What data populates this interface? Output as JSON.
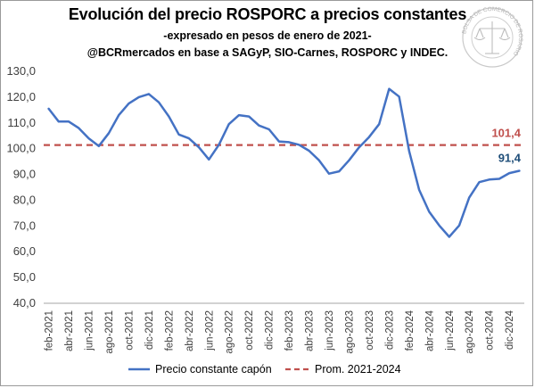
{
  "chart_data": {
    "type": "line",
    "title": "Evolución del precio ROSPORC a precios constantes",
    "subtitle": "-expresado en pesos de enero de 2021-",
    "source": "@BCRmercados en base a SAGyP, SIO-Carnes, ROSPORC y INDEC.",
    "xlabel": "",
    "ylabel": "",
    "ylim": [
      40,
      130
    ],
    "yticks": [
      "40,0",
      "50,0",
      "60,0",
      "70,0",
      "80,0",
      "90,0",
      "100,0",
      "110,0",
      "120,0",
      "130,0"
    ],
    "x": [
      "feb-2021",
      "mar-2021",
      "abr-2021",
      "may-2021",
      "jun-2021",
      "jul-2021",
      "ago-2021",
      "sep-2021",
      "oct-2021",
      "nov-2021",
      "dic-2021",
      "ene-2022",
      "feb-2022",
      "mar-2022",
      "abr-2022",
      "may-2022",
      "jun-2022",
      "jul-2022",
      "ago-2022",
      "sep-2022",
      "oct-2022",
      "nov-2022",
      "dic-2022",
      "ene-2023",
      "feb-2023",
      "mar-2023",
      "abr-2023",
      "may-2023",
      "jun-2023",
      "jul-2023",
      "ago-2023",
      "sep-2023",
      "oct-2023",
      "nov-2023",
      "dic-2023",
      "ene-2024",
      "feb-2024",
      "mar-2024",
      "abr-2024",
      "may-2024",
      "jun-2024",
      "jul-2024",
      "ago-2024",
      "sep-2024",
      "oct-2024",
      "nov-2024",
      "dic-2024",
      "ene-2025"
    ],
    "xtick_labels": [
      "feb-2021",
      "abr-2021",
      "jun-2021",
      "ago-2021",
      "oct-2021",
      "dic-2021",
      "feb-2022",
      "abr-2022",
      "jun-2022",
      "ago-2022",
      "oct-2022",
      "dic-2022",
      "feb-2023",
      "abr-2023",
      "jun-2023",
      "ago-2023",
      "oct-2023",
      "dic-2023",
      "feb-2024",
      "abr-2024",
      "jun-2024",
      "ago-2024",
      "oct-2024",
      "dic-2024"
    ],
    "series": [
      {
        "name": "Precio constante capón",
        "color": "#4472c4",
        "style": "solid",
        "values": [
          115.5,
          110.5,
          110.5,
          108.0,
          104.0,
          101.0,
          106.0,
          113.0,
          117.5,
          120.0,
          121.2,
          118.0,
          112.5,
          105.5,
          104.0,
          100.5,
          95.8,
          101.5,
          109.5,
          113.0,
          112.5,
          109.0,
          107.5,
          102.8,
          102.5,
          101.5,
          99.2,
          95.5,
          90.3,
          91.2,
          95.5,
          100.5,
          104.5,
          109.5,
          123.2,
          120.2,
          99.0,
          84.0,
          75.5,
          70.2,
          65.8,
          70.2,
          81.0,
          87.0,
          88.0,
          88.3,
          90.5,
          91.4
        ]
      },
      {
        "name": "Prom. 2021-2024",
        "color": "#c0504d",
        "style": "dashed",
        "value": 101.4
      }
    ],
    "annotations": [
      {
        "text": "101,4",
        "series": "Prom. 2021-2024",
        "color": "#c0504d"
      },
      {
        "text": "91,4",
        "series": "Precio constante capón",
        "color": "#1f4e79"
      }
    ],
    "legend": {
      "placement": "bottom",
      "items": [
        "Precio constante capón",
        "Prom. 2021-2024"
      ]
    },
    "grid": false
  },
  "logo": {
    "text": "BOLSA DE COMERCIO DE ROSARIO"
  }
}
